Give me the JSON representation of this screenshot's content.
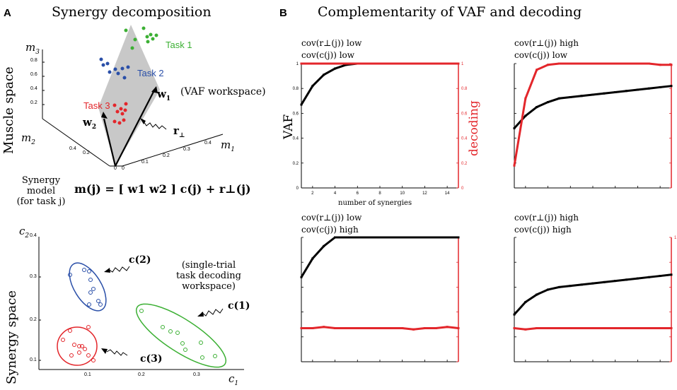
{
  "panel_a": {
    "letter": "A",
    "title": "Synergy decomposition",
    "muscle_space_label": "Muscle space",
    "synergy_space_label": "Synergy space",
    "axis_m3": "m",
    "axis_m3_sub": "3",
    "axis_m2": "m",
    "axis_m2_sub": "2",
    "axis_m1": "m",
    "axis_m1_sub": "1",
    "task1": "Task 1",
    "task2": "Task 2",
    "task3": "Task 3",
    "vaf_workspace": "(VAF workspace)",
    "w1": "w",
    "w1_sub": "1",
    "w2": "w",
    "w2_sub": "2",
    "r_perp": "r",
    "r_perp_sub": "⊥",
    "model_label_line1": "Synergy",
    "model_label_line2": "model",
    "model_label_line3": "(for task j)",
    "equation": "m(j) = [ w1  w2 ] c(j) + r⊥(j)",
    "z_ticks": [
      "0.8",
      "0.6",
      "0.4",
      "0.2"
    ],
    "m2_ticks": [
      "0.4",
      "0.2",
      "0"
    ],
    "m1_ticks": [
      "0",
      "0.1",
      "0.2",
      "0.3",
      "0.4"
    ],
    "c2_label": "c",
    "c2_sub": "2",
    "c1_label": "c",
    "c1_sub": "1",
    "c_labels": [
      "c(2)",
      "c(1)",
      "c(3)"
    ],
    "decoding_workspace_line1": "(single-trial",
    "decoding_workspace_line2": "task decoding",
    "decoding_workspace_line3": "workspace)",
    "c_y_ticks": [
      "0.4",
      "0.3",
      "0.2",
      "0.1"
    ],
    "c_x_ticks": [
      "0.1",
      "0.2",
      "0.3"
    ],
    "colors": {
      "task1": "#3cb034",
      "task2": "#2a4fa8",
      "task3": "#e3262b",
      "plane": "#c8c8c8"
    }
  },
  "panel_b": {
    "letter": "B",
    "title": "Complementarity of VAF and decoding",
    "vaf_label": "VAF",
    "decoding_label": "decoding",
    "xlabel": "number of synergies",
    "subplots": [
      {
        "line1": "cov(r⊥(j))  low",
        "line2": "cov(c(j))  low"
      },
      {
        "line1": "cov(r⊥(j))  high",
        "line2": "cov(c(j))  low"
      },
      {
        "line1": "cov(r⊥(j))  low",
        "line2": "cov(c(j))  high"
      },
      {
        "line1": "cov(r⊥(j))  high",
        "line2": "cov(c(j))  high"
      }
    ],
    "y_ticks_left": [
      "1",
      "0.8",
      "0.6",
      "0.4",
      "0.2",
      "0"
    ],
    "y_ticks_right": [
      "1",
      "0.8",
      "0.6",
      "0.4",
      "0.2",
      "0"
    ],
    "x_ticks": [
      "2",
      "4",
      "6",
      "8",
      "10",
      "12",
      "14"
    ],
    "right_tick_top_only": "1"
  },
  "chart_data": [
    {
      "type": "line",
      "title": "cov(r⊥) low, cov(c) low",
      "xlabel": "number of synergies",
      "ylabel": "VAF",
      "y2label": "decoding",
      "x": [
        1,
        2,
        3,
        4,
        5,
        6,
        7,
        8,
        9,
        10,
        11,
        12,
        13,
        14,
        15
      ],
      "series": [
        {
          "name": "VAF",
          "color": "#000000",
          "values": [
            0.67,
            0.82,
            0.91,
            0.96,
            0.99,
            1,
            1,
            1,
            1,
            1,
            1,
            1,
            1,
            1,
            1
          ]
        },
        {
          "name": "decoding",
          "color": "#e3262b",
          "values": [
            1,
            1,
            1,
            1,
            1,
            1,
            1,
            1,
            1,
            1,
            1,
            1,
            1,
            1,
            1
          ]
        }
      ],
      "ylim": [
        0,
        1
      ],
      "xlim": [
        1,
        15
      ]
    },
    {
      "type": "line",
      "title": "cov(r⊥) high, cov(c) low",
      "x": [
        1,
        2,
        3,
        4,
        5,
        6,
        7,
        8,
        9,
        10,
        11,
        12,
        13,
        14,
        15
      ],
      "series": [
        {
          "name": "VAF",
          "color": "#000000",
          "values": [
            0.48,
            0.58,
            0.65,
            0.69,
            0.72,
            0.73,
            0.74,
            0.75,
            0.76,
            0.77,
            0.78,
            0.79,
            0.8,
            0.81,
            0.82
          ]
        },
        {
          "name": "decoding",
          "color": "#e3262b",
          "values": [
            0.18,
            0.72,
            0.95,
            0.99,
            1,
            1,
            1,
            1,
            1,
            1,
            1,
            1,
            1,
            0.99,
            0.99
          ]
        }
      ],
      "ylim": [
        0,
        1
      ],
      "xlim": [
        1,
        15
      ]
    },
    {
      "type": "line",
      "title": "cov(r⊥) low, cov(c) high",
      "x": [
        1,
        2,
        3,
        4,
        5,
        6,
        7,
        8,
        9,
        10,
        11,
        12,
        13,
        14,
        15
      ],
      "series": [
        {
          "name": "VAF",
          "color": "#000000",
          "values": [
            0.68,
            0.83,
            0.93,
            1,
            1,
            1,
            1,
            1,
            1,
            1,
            1,
            1,
            1,
            1,
            1
          ]
        },
        {
          "name": "decoding",
          "color": "#e3262b",
          "values": [
            0.27,
            0.27,
            0.28,
            0.27,
            0.27,
            0.27,
            0.27,
            0.27,
            0.27,
            0.27,
            0.26,
            0.27,
            0.27,
            0.28,
            0.27
          ]
        }
      ],
      "ylim": [
        0,
        1
      ],
      "xlim": [
        1,
        15
      ]
    },
    {
      "type": "line",
      "title": "cov(r⊥) high, cov(c) high",
      "x": [
        1,
        2,
        3,
        4,
        5,
        6,
        7,
        8,
        9,
        10,
        11,
        12,
        13,
        14,
        15
      ],
      "series": [
        {
          "name": "VAF",
          "color": "#000000",
          "values": [
            0.38,
            0.48,
            0.54,
            0.58,
            0.6,
            0.61,
            0.62,
            0.63,
            0.64,
            0.65,
            0.66,
            0.67,
            0.68,
            0.69,
            0.7
          ]
        },
        {
          "name": "decoding",
          "color": "#e3262b",
          "values": [
            0.27,
            0.26,
            0.27,
            0.27,
            0.27,
            0.27,
            0.27,
            0.27,
            0.27,
            0.27,
            0.27,
            0.27,
            0.27,
            0.27,
            0.27
          ]
        }
      ],
      "ylim": [
        0,
        1
      ],
      "xlim": [
        1,
        15
      ]
    }
  ]
}
